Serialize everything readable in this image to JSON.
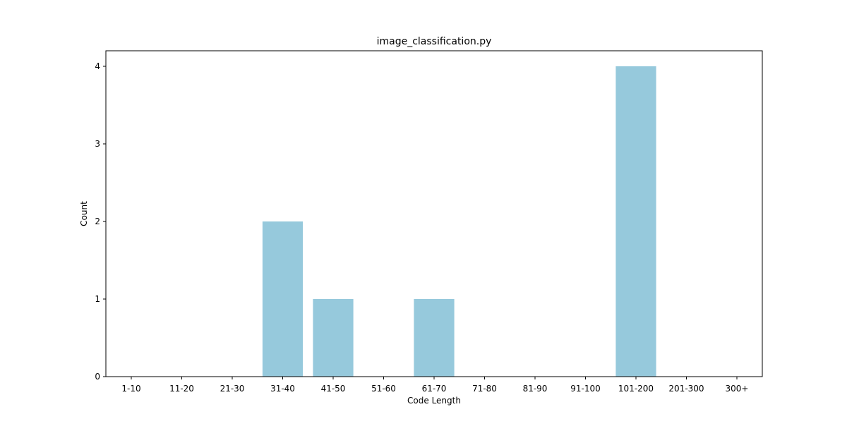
{
  "chart_data": {
    "type": "bar",
    "title": "image_classification.py",
    "xlabel": "Code Length",
    "ylabel": "Count",
    "categories": [
      "1-10",
      "11-20",
      "21-30",
      "31-40",
      "41-50",
      "51-60",
      "61-70",
      "71-80",
      "81-90",
      "91-100",
      "101-200",
      "201-300",
      "300+"
    ],
    "values": [
      0,
      0,
      0,
      2,
      1,
      0,
      1,
      0,
      0,
      0,
      4,
      0,
      0
    ],
    "ylim": [
      0,
      4.2
    ],
    "yticks": [
      "0",
      "1",
      "2",
      "3",
      "4"
    ],
    "bar_color": "#96c9dc",
    "grid": false,
    "legend": "none"
  }
}
